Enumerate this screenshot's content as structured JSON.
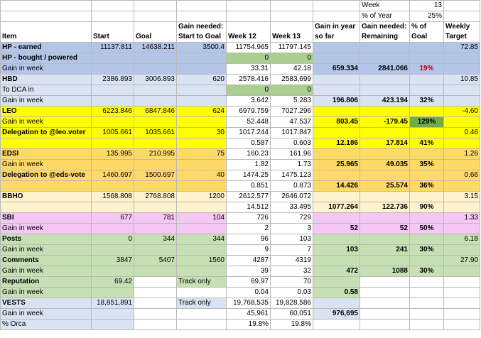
{
  "colors": {
    "blue": "#b4c6e7",
    "lightblue": "#dae3f3",
    "yellow": "#ffff00",
    "orange": "#ffd966",
    "cream": "#fff2cc",
    "pink": "#f4c7f4",
    "green": "#c6e0b4",
    "cellgreen": "#a9d08e",
    "goodgreen": "#70ad47",
    "white": "#ffffff"
  },
  "top": {
    "week_label": "Week",
    "week_value": "13",
    "pct_year_label": "% of Year",
    "pct_year_value": "25%"
  },
  "header": {
    "item": "Item",
    "start": "Start",
    "goal": "Goal",
    "gain_needed_start": "Gain needed: Start to Goal",
    "week12": "Week 12",
    "week13": "Week 13",
    "gain_year": "Gain in year so far",
    "gain_needed_remaining": "Gain needed: Remaining",
    "pct_goal": "% of Goal",
    "weekly_target": "Weekly Target"
  },
  "rows": [
    {
      "label": "HP - earned",
      "start": "11137.811",
      "goal": "14638.211",
      "need": "3500.4",
      "w12": "11754.965",
      "w13": "11797.145",
      "gy": "",
      "gnr": "",
      "pg": "",
      "wt": "72.85"
    },
    {
      "label": "HP - bought / powered",
      "start": "",
      "goal": "",
      "need": "",
      "w12": "0",
      "w13": "0",
      "gy": "",
      "gnr": "",
      "pg": "",
      "wt": ""
    },
    {
      "label": "Gain in week",
      "start": "",
      "goal": "",
      "need": "",
      "w12": "33.31",
      "w13": "42.18",
      "gy": "659.334",
      "gnr": "2841.066",
      "pg": "19%",
      "wt": ""
    },
    {
      "label": "HBD",
      "start": "2386.893",
      "goal": "3006.893",
      "need": "620",
      "w12": "2578.416",
      "w13": "2583.699",
      "gy": "",
      "gnr": "",
      "pg": "",
      "wt": "10.85"
    },
    {
      "label": "To DCA in",
      "start": "",
      "goal": "",
      "need": "",
      "w12": "0",
      "w13": "0",
      "gy": "",
      "gnr": "",
      "pg": "",
      "wt": ""
    },
    {
      "label": "Gain in week",
      "start": "",
      "goal": "",
      "need": "",
      "w12": "3.642",
      "w13": "5.283",
      "gy": "196.806",
      "gnr": "423.194",
      "pg": "32%",
      "wt": ""
    },
    {
      "label": "LEO",
      "start": "6223.846",
      "goal": "6847.846",
      "need": "624",
      "w12": "6979.759",
      "w13": "7027.296",
      "gy": "",
      "gnr": "",
      "pg": "",
      "wt": "-4.60"
    },
    {
      "label": "Gain in week",
      "start": "",
      "goal": "",
      "need": "",
      "w12": "52.448",
      "w13": "47.537",
      "gy": "803.45",
      "gnr": "-179.45",
      "pg": "129%",
      "wt": ""
    },
    {
      "label": "Delegation to @leo.voter",
      "start": "1005.661",
      "goal": "1035.661",
      "need": "30",
      "w12": "1017.244",
      "w13": "1017.847",
      "gy": "",
      "gnr": "",
      "pg": "",
      "wt": "0.46"
    },
    {
      "label": "",
      "start": "",
      "goal": "",
      "need": "",
      "w12": "0.587",
      "w13": "0.603",
      "gy": "12.186",
      "gnr": "17.814",
      "pg": "41%",
      "wt": ""
    },
    {
      "label": "EDSI",
      "start": "135.995",
      "goal": "210.995",
      "need": "75",
      "w12": "160.23",
      "w13": "161.96",
      "gy": "",
      "gnr": "",
      "pg": "",
      "wt": "1.26"
    },
    {
      "label": "Gain in week",
      "start": "",
      "goal": "",
      "need": "",
      "w12": "1.82",
      "w13": "1.73",
      "gy": "25.965",
      "gnr": "49.035",
      "pg": "35%",
      "wt": ""
    },
    {
      "label": "Delegation to @eds-vote",
      "start": "1460.697",
      "goal": "1500.697",
      "need": "40",
      "w12": "1474.25",
      "w13": "1475.123",
      "gy": "",
      "gnr": "",
      "pg": "",
      "wt": "0.66"
    },
    {
      "label": "",
      "start": "",
      "goal": "",
      "need": "",
      "w12": "0.851",
      "w13": "0.873",
      "gy": "14.426",
      "gnr": "25.574",
      "pg": "36%",
      "wt": ""
    },
    {
      "label": "BBHO",
      "start": "1568.808",
      "goal": "2768.808",
      "need": "1200",
      "w12": "2612.577",
      "w13": "2646.072",
      "gy": "",
      "gnr": "",
      "pg": "",
      "wt": "3.15"
    },
    {
      "label": "",
      "start": "",
      "goal": "",
      "need": "",
      "w12": "14.512",
      "w13": "33.495",
      "gy": "1077.264",
      "gnr": "122.736",
      "pg": "90%",
      "wt": ""
    },
    {
      "label": "SBI",
      "start": "677",
      "goal": "781",
      "need": "104",
      "w12": "726",
      "w13": "729",
      "gy": "",
      "gnr": "",
      "pg": "",
      "wt": "1.33"
    },
    {
      "label": "Gain in week",
      "start": "",
      "goal": "",
      "need": "",
      "w12": "2",
      "w13": "3",
      "gy": "52",
      "gnr": "52",
      "pg": "50%",
      "wt": ""
    },
    {
      "label": "Posts",
      "start": "0",
      "goal": "344",
      "need": "344",
      "w12": "96",
      "w13": "103",
      "gy": "",
      "gnr": "",
      "pg": "",
      "wt": "6.18"
    },
    {
      "label": "Gain in week",
      "start": "",
      "goal": "",
      "need": "",
      "w12": "9",
      "w13": "7",
      "gy": "103",
      "gnr": "241",
      "pg": "30%",
      "wt": ""
    },
    {
      "label": "Comments",
      "start": "3847",
      "goal": "5407",
      "need": "1560",
      "w12": "4287",
      "w13": "4319",
      "gy": "",
      "gnr": "",
      "pg": "",
      "wt": "27.90"
    },
    {
      "label": "Gain in week",
      "start": "",
      "goal": "",
      "need": "",
      "w12": "39",
      "w13": "32",
      "gy": "472",
      "gnr": "1088",
      "pg": "30%",
      "wt": ""
    },
    {
      "label": "Reputation",
      "start": "69.42",
      "goal": "",
      "need": "Track only",
      "w12": "69.97",
      "w13": "70",
      "gy": "",
      "gnr": "",
      "pg": "",
      "wt": ""
    },
    {
      "label": "Gain in week",
      "start": "",
      "goal": "",
      "need": "",
      "w12": "0.04",
      "w13": "0.03",
      "gy": "0.58",
      "gnr": "",
      "pg": "",
      "wt": ""
    },
    {
      "label": "VESTS",
      "start": "18,851,891",
      "goal": "",
      "need": "Track only",
      "w12": "19,768,535",
      "w13": "19,828,586",
      "gy": "",
      "gnr": "",
      "pg": "",
      "wt": ""
    },
    {
      "label": "Gain in week",
      "start": "",
      "goal": "",
      "need": "",
      "w12": "45,961",
      "w13": "60,051",
      "gy": "976,695",
      "gnr": "",
      "pg": "",
      "wt": ""
    },
    {
      "label": "% Orca",
      "start": "",
      "goal": "",
      "need": "",
      "w12": "19.8%",
      "w13": "19.8%",
      "gy": "",
      "gnr": "",
      "pg": "",
      "wt": ""
    }
  ]
}
